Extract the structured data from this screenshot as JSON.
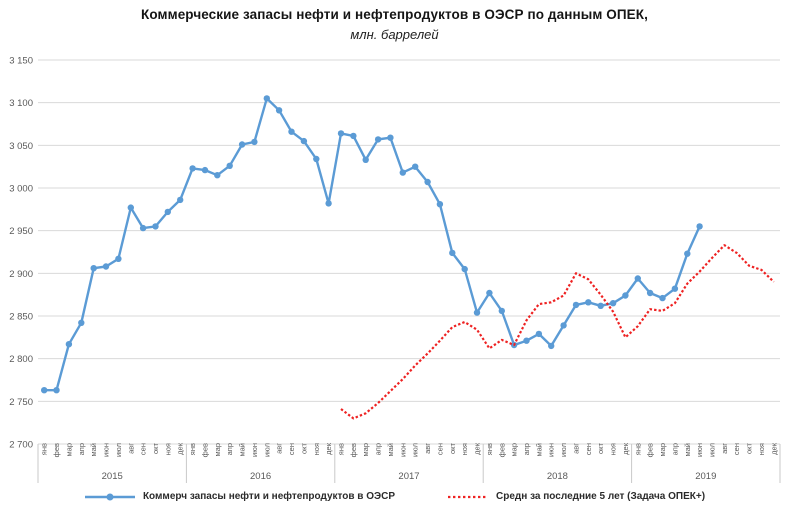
{
  "title": {
    "line1": "Коммерческие запасы нефти и нефтепродуктов в ОЭСР по данным ОПЕК,",
    "line2": "млн. баррелей"
  },
  "axes": {
    "y_tick_labels": [
      "2 700",
      "2 750",
      "2 800",
      "2 850",
      "2 900",
      "2 950",
      "3 000",
      "3 050",
      "3 100",
      "3 150"
    ],
    "colors": {
      "gridline": "#d9d9d9",
      "separator": "#c9c9c9",
      "tick_text": "#595959"
    }
  },
  "chart_data": {
    "type": "line",
    "title": "Коммерческие запасы нефти и нефтепродуктов в ОЭСР по данным ОПЕК,",
    "subtitle": "млн. баррелей",
    "x_months": [
      "янв",
      "фев",
      "мар",
      "апр",
      "май",
      "июн",
      "июл",
      "авг",
      "сен",
      "окт",
      "ноя",
      "дек"
    ],
    "years": [
      "2015",
      "2016",
      "2017",
      "2018",
      "2019"
    ],
    "ylim": [
      2700,
      3150
    ],
    "y_step": 50,
    "grid": true,
    "legend_position": "bottom",
    "series": [
      {
        "name": "Коммерч запасы нефти и нефтепродуктов в ОЭСР",
        "color": "#5b9bd5",
        "style": "solid",
        "markers": true,
        "values": [
          2763,
          2763,
          2817,
          2842,
          2906,
          2908,
          2917,
          2977,
          2953,
          2955,
          2972,
          2986,
          3023,
          3021,
          3015,
          3026,
          3051,
          3054,
          3105,
          3091,
          3066,
          3055,
          3034,
          2982,
          3064,
          3061,
          3033,
          3057,
          3059,
          3018,
          3025,
          3007,
          2981,
          2924,
          2905,
          2854,
          2877,
          2856,
          2816,
          2821,
          2829,
          2815,
          2839,
          2863,
          2866,
          2862,
          2865,
          2874,
          2894,
          2877,
          2871,
          2882,
          2923,
          2955,
          null,
          null,
          null,
          null,
          null,
          null
        ]
      },
      {
        "name": "Средн за последние 5 лет (Задача ОПЕК+)",
        "color": "#ee2222",
        "style": "dotted",
        "markers": false,
        "values": [
          null,
          null,
          null,
          null,
          null,
          null,
          null,
          null,
          null,
          null,
          null,
          null,
          null,
          null,
          null,
          null,
          null,
          null,
          null,
          null,
          null,
          null,
          null,
          null,
          2741,
          2730,
          2736,
          2748,
          2762,
          2776,
          2792,
          2806,
          2821,
          2837,
          2843,
          2834,
          2812,
          2822,
          2816,
          2845,
          2864,
          2866,
          2874,
          2900,
          2893,
          2875,
          2855,
          2825,
          2838,
          2858,
          2856,
          2865,
          2888,
          2902,
          2918,
          2933,
          2924,
          2909,
          2904,
          2890
        ]
      }
    ]
  }
}
